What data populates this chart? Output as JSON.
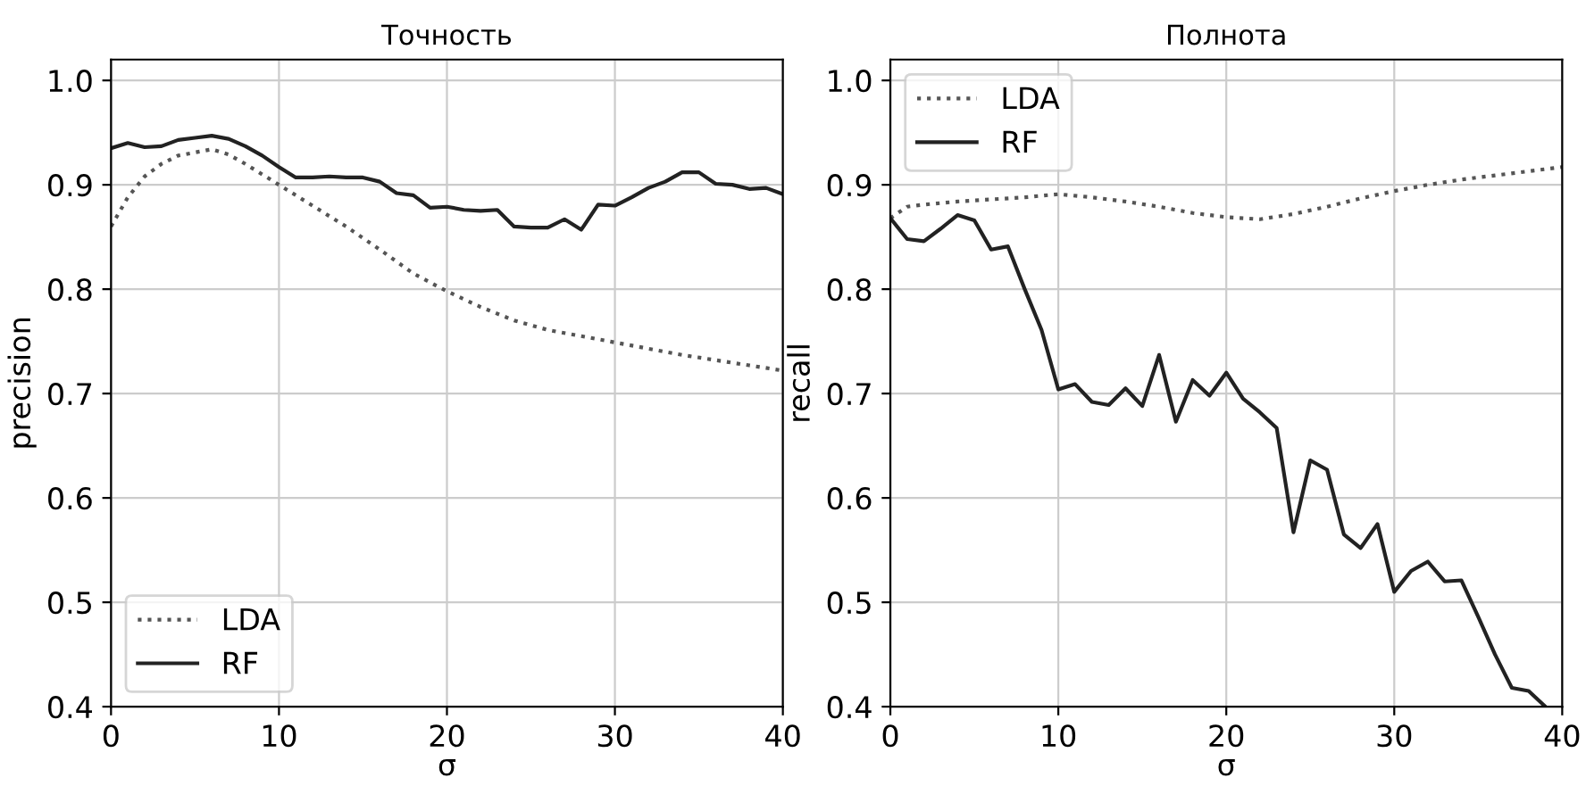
{
  "chart_data": [
    {
      "type": "line",
      "title": "Точность",
      "xlabel": "σ",
      "ylabel": "precision",
      "xlim": [
        0,
        40
      ],
      "xticks": [
        0,
        10,
        20,
        30,
        40
      ],
      "ylim": [
        0.4,
        1.02
      ],
      "yticks": [
        0.4,
        0.5,
        0.6,
        0.7,
        0.8,
        0.9,
        {
          "value": 1,
          "label": "1.0"
        }
      ],
      "grid": true,
      "legend": "bottom left",
      "series": [
        {
          "name": "LDA",
          "color": "#555555",
          "line_style": "dotted",
          "x": [
            0,
            1,
            2,
            3,
            4,
            5,
            6,
            7,
            8,
            9,
            10,
            12,
            14,
            16,
            18,
            20,
            22,
            24,
            26,
            28,
            30,
            32,
            34,
            36,
            38,
            40
          ],
          "values": [
            0.86,
            0.888,
            0.908,
            0.92,
            0.928,
            0.931,
            0.934,
            0.929,
            0.92,
            0.91,
            0.9,
            0.88,
            0.86,
            0.838,
            0.815,
            0.798,
            0.783,
            0.77,
            0.761,
            0.755,
            0.749,
            0.743,
            0.737,
            0.732,
            0.727,
            0.722
          ]
        },
        {
          "name": "RF",
          "color": "#222222",
          "line_style": "solid",
          "x": [
            0,
            1,
            2,
            3,
            4,
            5,
            6,
            7,
            8,
            9,
            10,
            11,
            12,
            13,
            14,
            15,
            16,
            17,
            18,
            19,
            20,
            21,
            22,
            23,
            24,
            25,
            26,
            27,
            28,
            29,
            30,
            31,
            32,
            33,
            34,
            35,
            36,
            37,
            38,
            39,
            40
          ],
          "values": [
            0.935,
            0.94,
            0.936,
            0.937,
            0.943,
            0.945,
            0.947,
            0.944,
            0.937,
            0.928,
            0.917,
            0.907,
            0.907,
            0.908,
            0.907,
            0.907,
            0.903,
            0.892,
            0.89,
            0.878,
            0.879,
            0.876,
            0.875,
            0.876,
            0.86,
            0.859,
            0.859,
            0.867,
            0.857,
            0.881,
            0.88,
            0.888,
            0.897,
            0.903,
            0.912,
            0.912,
            0.901,
            0.9,
            0.896,
            0.897,
            0.891
          ]
        }
      ]
    },
    {
      "type": "line",
      "title": "Полнота",
      "xlabel": "σ",
      "ylabel": "recall",
      "xlim": [
        0,
        40
      ],
      "xticks": [
        0,
        10,
        20,
        30,
        40
      ],
      "ylim": [
        0.4,
        1.02
      ],
      "yticks": [
        0.4,
        0.5,
        0.6,
        0.7,
        0.8,
        0.9,
        {
          "value": 1,
          "label": "1.0"
        }
      ],
      "grid": true,
      "legend": "top left",
      "series": [
        {
          "name": "LDA",
          "color": "#555555",
          "line_style": "dotted",
          "x": [
            0,
            1,
            2,
            4,
            6,
            8,
            10,
            12,
            14,
            16,
            18,
            20,
            22,
            24,
            26,
            28,
            30,
            32,
            34,
            36,
            38,
            40
          ],
          "values": [
            0.868,
            0.879,
            0.881,
            0.884,
            0.886,
            0.888,
            0.891,
            0.888,
            0.884,
            0.879,
            0.873,
            0.869,
            0.867,
            0.872,
            0.879,
            0.887,
            0.894,
            0.9,
            0.905,
            0.909,
            0.913,
            0.917
          ]
        },
        {
          "name": "RF",
          "color": "#222222",
          "line_style": "solid",
          "x": [
            0,
            1,
            2,
            3,
            4,
            5,
            6,
            7,
            8,
            9,
            10,
            11,
            12,
            13,
            14,
            15,
            16,
            17,
            18,
            19,
            20,
            21,
            22,
            23,
            24,
            25,
            26,
            27,
            28,
            29,
            30,
            31,
            32,
            33,
            34,
            35,
            36,
            37,
            38,
            39
          ],
          "values": [
            0.868,
            0.848,
            0.846,
            0.858,
            0.871,
            0.866,
            0.838,
            0.841,
            0.8,
            0.761,
            0.704,
            0.709,
            0.692,
            0.689,
            0.705,
            0.688,
            0.737,
            0.673,
            0.713,
            0.698,
            0.72,
            0.695,
            0.682,
            0.667,
            0.567,
            0.636,
            0.627,
            0.565,
            0.552,
            0.575,
            0.51,
            0.53,
            0.539,
            0.52,
            0.521,
            0.486,
            0.45,
            0.418,
            0.415,
            0.4
          ]
        }
      ]
    }
  ]
}
